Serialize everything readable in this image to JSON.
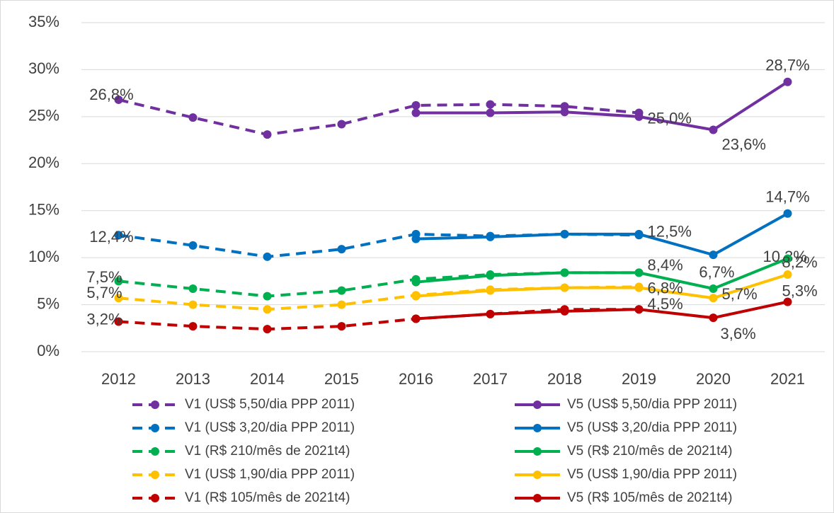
{
  "chart_data": {
    "type": "line",
    "categories": [
      "2012",
      "2013",
      "2014",
      "2015",
      "2016",
      "2017",
      "2018",
      "2019",
      "2020",
      "2021"
    ],
    "ylim": [
      0,
      35
    ],
    "yticks": [
      {
        "value": 0,
        "label": "0%"
      },
      {
        "value": 5,
        "label": "5%"
      },
      {
        "value": 10,
        "label": "10%"
      },
      {
        "value": 15,
        "label": "15%"
      },
      {
        "value": 20,
        "label": "20%"
      },
      {
        "value": 25,
        "label": "25%"
      },
      {
        "value": 30,
        "label": "30%"
      },
      {
        "value": 35,
        "label": "35%"
      }
    ],
    "grid": true,
    "series": [
      {
        "name": "V1 (US$ 5,50/dia PPP 2011)",
        "color": "#7030a0",
        "dashed": true,
        "values": [
          26.8,
          24.9,
          23.1,
          24.2,
          26.2,
          26.3,
          26.1,
          25.4,
          null,
          null
        ],
        "value_labels": [
          "26,8%",
          null,
          null,
          null,
          null,
          null,
          null,
          null,
          null,
          null
        ]
      },
      {
        "name": "V5 (US$ 5,50/dia PPP 2011)",
        "color": "#7030a0",
        "dashed": false,
        "values": [
          null,
          null,
          null,
          null,
          25.4,
          25.4,
          25.5,
          25.0,
          23.6,
          28.7
        ],
        "value_labels": [
          null,
          null,
          null,
          null,
          null,
          null,
          null,
          "25,0%",
          "23,6%",
          "28,7%"
        ]
      },
      {
        "name": "V1 (US$ 3,20/dia PPP 2011)",
        "color": "#0070c0",
        "dashed": true,
        "values": [
          12.4,
          11.3,
          10.1,
          10.9,
          12.5,
          12.3,
          12.5,
          12.4,
          null,
          null
        ],
        "value_labels": [
          "12,4%",
          null,
          null,
          null,
          null,
          null,
          null,
          null,
          null,
          null
        ]
      },
      {
        "name": "V5 (US$ 3,20/dia PPP 2011)",
        "color": "#0070c0",
        "dashed": false,
        "values": [
          null,
          null,
          null,
          null,
          12.0,
          12.2,
          12.5,
          12.5,
          10.3,
          14.7
        ],
        "value_labels": [
          null,
          null,
          null,
          null,
          null,
          null,
          null,
          "12,5%",
          "10,3%",
          "14,7%"
        ]
      },
      {
        "name": "V1 (R$ 210/mês de 2021t4)",
        "color": "#00b050",
        "dashed": true,
        "values": [
          7.5,
          6.7,
          5.9,
          6.5,
          7.7,
          8.2,
          8.4,
          8.4,
          null,
          null
        ],
        "value_labels": [
          "7,5%",
          null,
          null,
          null,
          null,
          null,
          null,
          null,
          null,
          null
        ]
      },
      {
        "name": "V5 (R$ 210/mês de 2021t4)",
        "color": "#00b050",
        "dashed": false,
        "values": [
          null,
          null,
          null,
          null,
          7.4,
          8.1,
          8.4,
          8.4,
          6.7,
          9.9
        ],
        "value_labels": [
          null,
          null,
          null,
          null,
          null,
          null,
          null,
          "8,4%",
          "6,7%",
          null
        ]
      },
      {
        "name": "V1 (US$ 1,90/dia PPP 2011)",
        "color": "#ffc000",
        "dashed": true,
        "values": [
          5.7,
          5.0,
          4.5,
          5.0,
          6.0,
          6.6,
          6.8,
          6.9,
          null,
          null
        ],
        "value_labels": [
          "5,7%",
          null,
          null,
          null,
          null,
          null,
          null,
          null,
          null,
          null
        ]
      },
      {
        "name": "V5 (US$ 1,90/dia PPP 2011)",
        "color": "#ffc000",
        "dashed": false,
        "values": [
          null,
          null,
          null,
          null,
          5.9,
          6.5,
          6.8,
          6.8,
          5.7,
          8.2
        ],
        "value_labels": [
          null,
          null,
          null,
          null,
          null,
          null,
          null,
          "6,8%",
          "5,7%",
          "8,2%"
        ]
      },
      {
        "name": "V1 (R$ 105/mês de 2021t4)",
        "color": "#c00000",
        "dashed": true,
        "values": [
          3.2,
          2.7,
          2.4,
          2.7,
          3.5,
          4.0,
          4.5,
          4.5,
          null,
          null
        ],
        "value_labels": [
          "3,2%",
          null,
          null,
          null,
          null,
          null,
          null,
          null,
          null,
          null
        ]
      },
      {
        "name": "V5 (R$ 105/mês de 2021t4)",
        "color": "#c00000",
        "dashed": false,
        "values": [
          null,
          null,
          null,
          null,
          3.5,
          4.0,
          4.3,
          4.5,
          3.6,
          5.3
        ],
        "value_labels": [
          null,
          null,
          null,
          null,
          null,
          null,
          null,
          "4,5%",
          "3,6%",
          "5,3%"
        ]
      }
    ]
  }
}
